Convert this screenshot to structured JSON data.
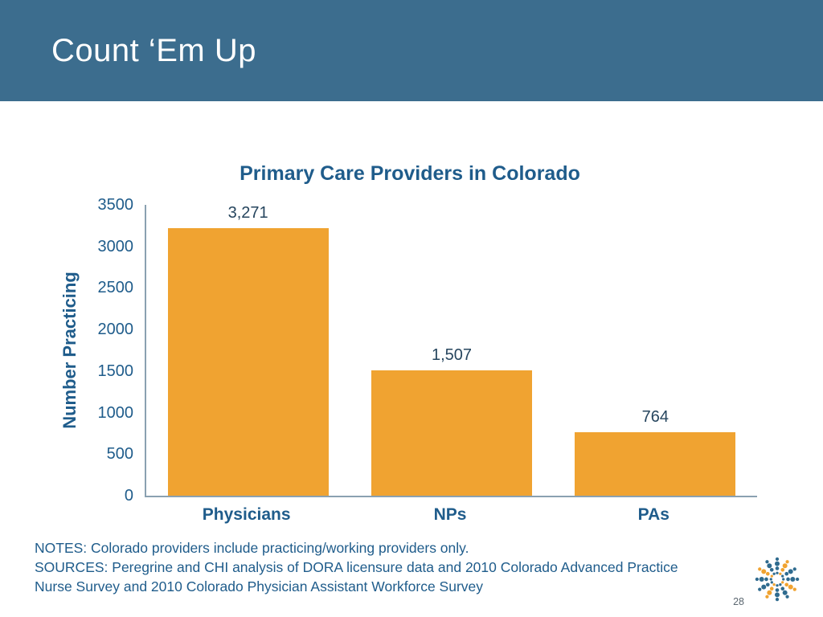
{
  "slide": {
    "header_title": "Count ‘Em Up",
    "page_number": "28",
    "notes": "NOTES: Colorado providers include practicing/working providers only.",
    "sources": "SOURCES: Peregrine and CHI analysis of DORA licensure data and 2010 Colorado Advanced Practice Nurse Survey and 2010 Colorado Physician Assistant Workforce Survey"
  },
  "colors": {
    "header_bg": "#3c6d8e",
    "header_title_text": "#ffffff",
    "chart_text": "#1f5c8b",
    "data_label_text": "#26455e",
    "bar": "#f0a331",
    "axis_line": "#8aa1b1",
    "page_number_text": "#5b6770",
    "logo_blue": "#2f6b8f",
    "logo_orange": "#f0a331"
  },
  "chart_data": {
    "type": "bar",
    "title": "Primary Care Providers in Colorado",
    "categories": [
      "Physicians",
      "NPs",
      "PAs"
    ],
    "values": [
      3271,
      1507,
      764
    ],
    "value_labels": [
      "3,271",
      "1,507",
      "764"
    ],
    "xlabel": "",
    "ylabel": "Number Practicing",
    "ylim": [
      0,
      3500
    ],
    "yticks": [
      3500,
      3000,
      2500,
      2000,
      1500,
      1000,
      500,
      0
    ],
    "grid": false,
    "legend": "none"
  }
}
